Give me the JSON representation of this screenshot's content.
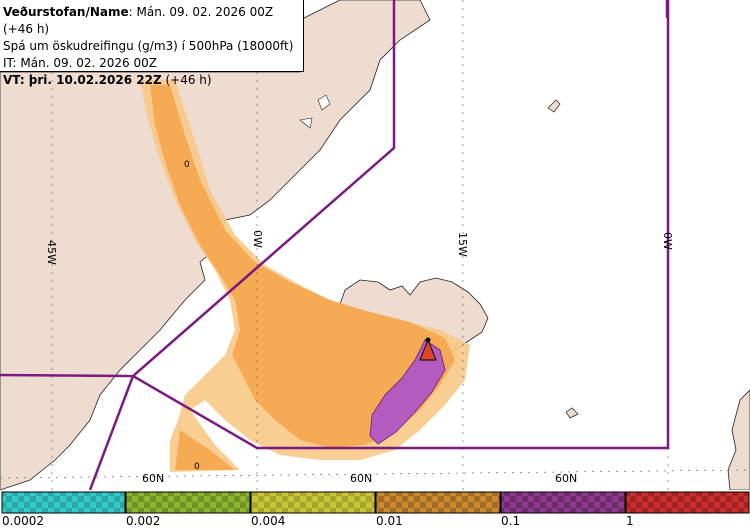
{
  "info": {
    "line1_label": "Veðurstofan/Name",
    "line1_value": ": Mán. 09. 02. 2026 00Z (+46 h)",
    "line2": "Spá um öskudreifingu (g/m3) í 500hPa (18000ft)",
    "line3": "IT: Mán. 09. 02. 2026 00Z",
    "line4_label": "VT: þri. 10.02.2026 22Z",
    "line4_value": " (+46 h)"
  },
  "grid_labels": {
    "lon_45w": "45W",
    "lon_30w": "0W",
    "lon_15w": "15W",
    "lon_0w": "0W",
    "lat_a": "60N",
    "lat_b": "60N",
    "lat_c": "60N"
  },
  "contour_labels": [
    "0",
    "0"
  ],
  "legend": {
    "labels": [
      "0.0002",
      "0.002",
      "0.004",
      "0.01",
      "0.1",
      "1"
    ],
    "colors": [
      "#35c8c8",
      "#8eb431",
      "#c9c538",
      "#c98a30",
      "#8e3a8c",
      "#c8302f"
    ]
  },
  "colors": {
    "land": "#efdcd0",
    "sea": "#ffffff",
    "boundary": "#7a1a80",
    "ash_low": "#f7c987",
    "ash_mid": "#f6aa54",
    "ash_high": "#b45cc0",
    "volcano": "#e0442a"
  }
}
